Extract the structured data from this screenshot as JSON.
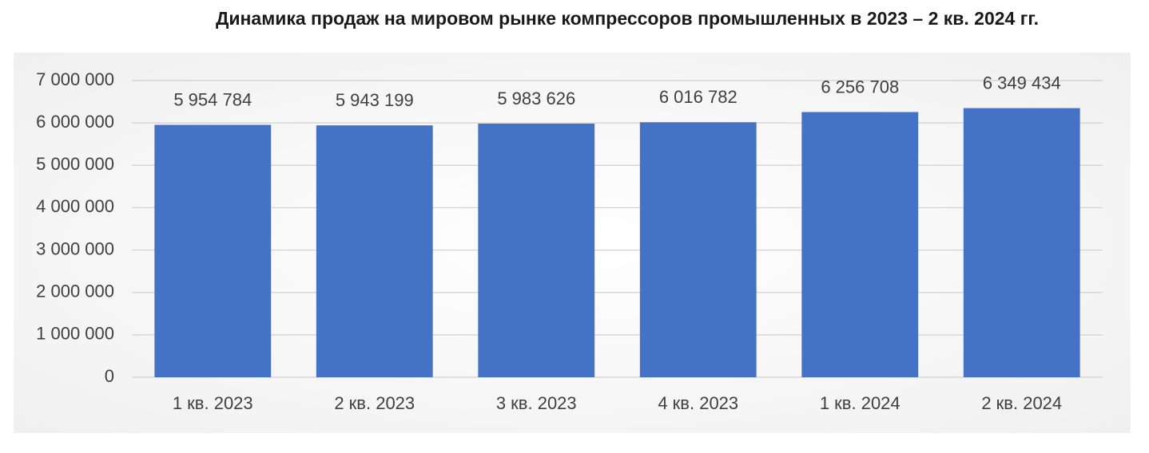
{
  "chart_data": {
    "type": "bar",
    "title": "Динамика продаж на мировом рынке компрессоров промышленных в 2023 – 2 кв. 2024 гг.",
    "categories": [
      "1 кв. 2023",
      "2 кв. 2023",
      "3 кв. 2023",
      "4 кв. 2023",
      "1 кв. 2024",
      "2 кв. 2024"
    ],
    "values": [
      5954784,
      5943199,
      5983626,
      6016782,
      6256708,
      6349434
    ],
    "value_labels": [
      "5 954 784",
      "5 943 199",
      "5 983 626",
      "6 016 782",
      "6 256 708",
      "6 349 434"
    ],
    "color": "#4472c4",
    "ylim": [
      0,
      7000000
    ],
    "yticks": [
      0,
      {
        "value": 1000000,
        "label": "1 000 000"
      },
      {
        "value": 2000000,
        "label": "2 000 000"
      },
      {
        "value": 3000000,
        "label": "3 000 000"
      },
      {
        "value": 4000000,
        "label": "4 000 000"
      },
      {
        "value": 5000000,
        "label": "5 000 000"
      },
      {
        "value": 6000000,
        "label": "6 000 000"
      },
      {
        "value": 7000000,
        "label": "7 000 000"
      }
    ],
    "grid": true
  }
}
